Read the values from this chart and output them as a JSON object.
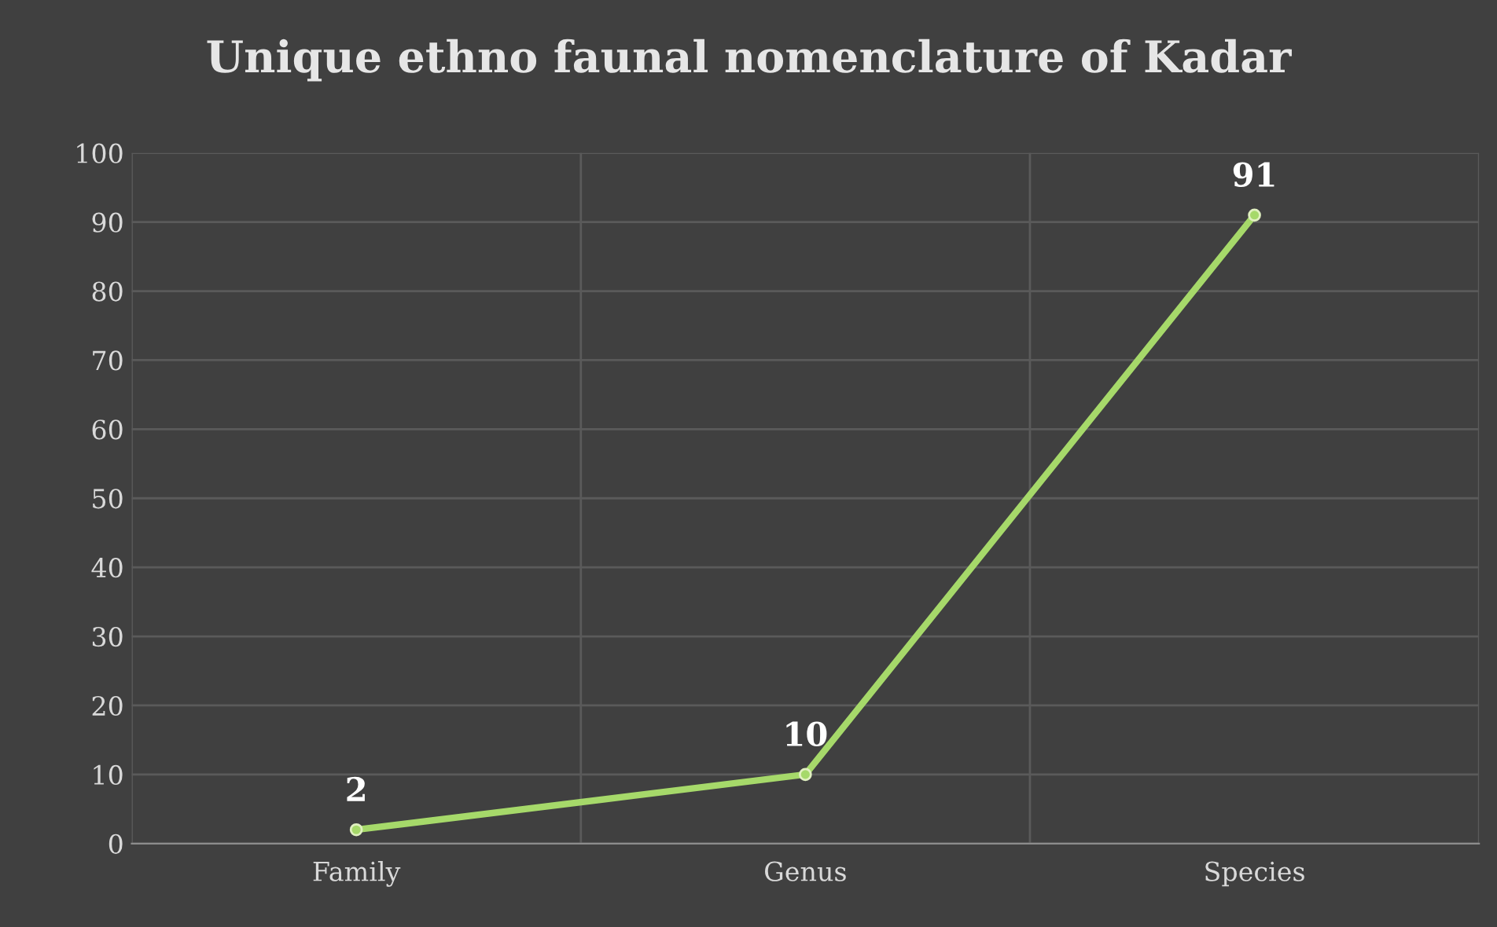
{
  "chart_data": {
    "type": "line",
    "title": "Unique ethno faunal nomenclature of Kadar",
    "categories": [
      "Family",
      "Genus",
      "Species"
    ],
    "series": [
      {
        "color": "#a6d96a",
        "values": [
          2,
          10,
          91
        ]
      }
    ],
    "ylim": [
      0,
      100
    ],
    "yticks": [
      0,
      10,
      20,
      30,
      40,
      50,
      60,
      70,
      80,
      90,
      100
    ],
    "grid": true,
    "data_labels": true,
    "marker": "circle",
    "line_style": "solid"
  }
}
